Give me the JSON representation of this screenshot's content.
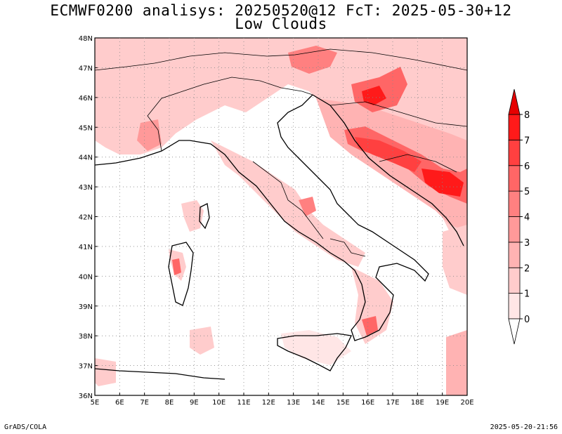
{
  "title": {
    "line1": "ECMWF0200 analisys: 20250520@12 FcT: 2025-05-30+12",
    "line2": "Low Clouds"
  },
  "footer": {
    "left": "GrADS/COLA",
    "right": "2025-05-20-21:56"
  },
  "map": {
    "lon_labels": [
      "5E",
      "6E",
      "7E",
      "8E",
      "9E",
      "10E",
      "11E",
      "12E",
      "13E",
      "14E",
      "15E",
      "16E",
      "17E",
      "18E",
      "19E",
      "20E"
    ],
    "lat_labels": [
      "48N",
      "47N",
      "46N",
      "45N",
      "44N",
      "43N",
      "42N",
      "41N",
      "40N",
      "39N",
      "38N",
      "37N",
      "36N"
    ],
    "lon_range": [
      5,
      20
    ],
    "lat_range": [
      36,
      48
    ],
    "grid": true
  },
  "colorbar": {
    "levels": [
      "0",
      "1",
      "2",
      "3",
      "4",
      "5",
      "6",
      "7",
      "8"
    ],
    "colors": [
      "#ffe6e6",
      "#ffcccc",
      "#ffb3b3",
      "#ff9999",
      "#ff8080",
      "#ff6666",
      "#ff4040",
      "#ff1a1a"
    ]
  }
}
